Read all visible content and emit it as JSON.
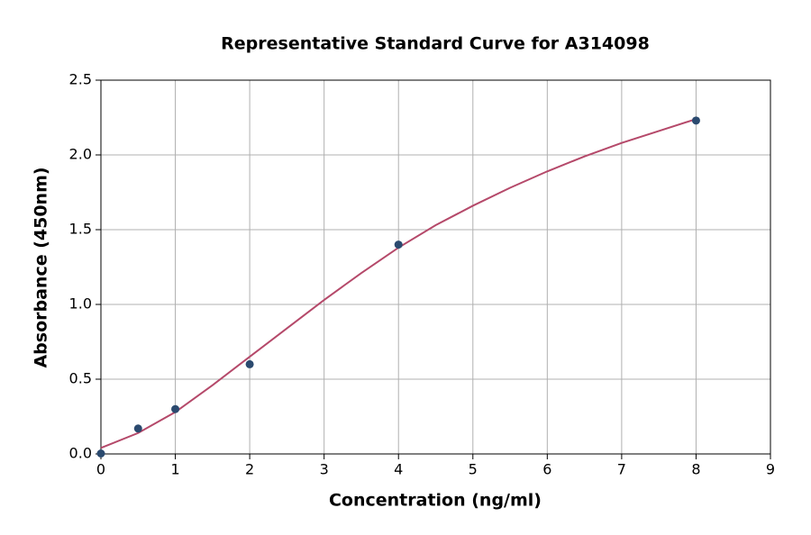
{
  "chart_data": {
    "type": "scatter",
    "title": "Representative Standard Curve for A314098",
    "x_label": "Concentration (ng/ml)",
    "y_label": "Absorbance (450nm)",
    "xlim": [
      0,
      9
    ],
    "ylim": [
      0,
      2.5
    ],
    "xticks": [
      0,
      1,
      2,
      3,
      4,
      5,
      6,
      7,
      8,
      9
    ],
    "yticks": [
      {
        "value": 0,
        "label": "0.0"
      },
      0.5,
      {
        "value": 1,
        "label": "1.0"
      },
      1.5,
      {
        "value": 2,
        "label": "2.0"
      },
      2.5
    ],
    "grid": true,
    "series": [
      {
        "mode": "line",
        "color": "#b5496a",
        "x": [
          0,
          0.5,
          1,
          1.5,
          2,
          2.5,
          3,
          3.5,
          4,
          4.5,
          5,
          5.5,
          6,
          6.5,
          7,
          7.5,
          8
        ],
        "values": [
          0.04,
          0.14,
          0.28,
          0.46,
          0.65,
          0.84,
          1.03,
          1.21,
          1.38,
          1.53,
          1.66,
          1.78,
          1.89,
          1.99,
          2.08,
          2.16,
          2.24
        ]
      },
      {
        "mode": "markers",
        "color": "#2b4a6f",
        "x": [
          0,
          0.5,
          1,
          2,
          4,
          8
        ],
        "values": [
          0.003,
          0.17,
          0.3,
          0.6,
          1.4,
          2.23
        ]
      }
    ]
  }
}
